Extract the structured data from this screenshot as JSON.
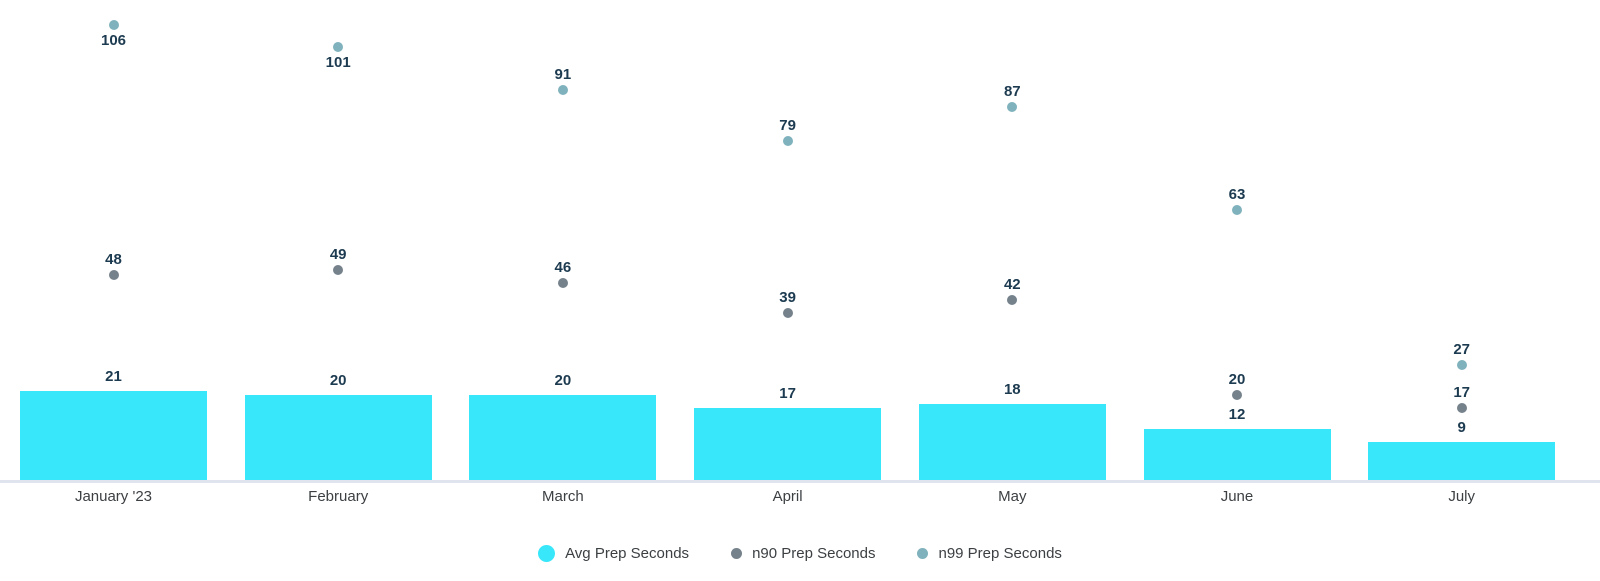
{
  "chart_data": {
    "type": "combo-bar-scatter",
    "title": "",
    "xlabel": "",
    "ylabel": "",
    "categories": [
      "January '23",
      "February",
      "March",
      "April",
      "May",
      "June",
      "July"
    ],
    "series": [
      {
        "name": "Avg Prep Seconds",
        "type": "bar",
        "color": "#39e7fa",
        "values": [
          21,
          20,
          20,
          17,
          18,
          12,
          9
        ]
      },
      {
        "name": "n90 Prep Seconds",
        "type": "scatter",
        "color": "#75828c",
        "values": [
          48,
          49,
          46,
          39,
          42,
          20,
          17
        ]
      },
      {
        "name": "n99 Prep Seconds",
        "type": "scatter",
        "color": "#7fb2bc",
        "values": [
          106,
          101,
          91,
          79,
          87,
          63,
          27
        ],
        "label_below_indices": [
          0,
          1
        ]
      }
    ],
    "ylim": [
      0,
      112
    ],
    "grid": false,
    "y_axis_labels_visible": false,
    "data_labels_visible": true,
    "data_label_color": "#1d3b50",
    "axis_tick_label_color": "#3c4043",
    "axis_line_color": "#e0e4ee",
    "background_color": "#ffffff",
    "legend_position": "bottom"
  }
}
